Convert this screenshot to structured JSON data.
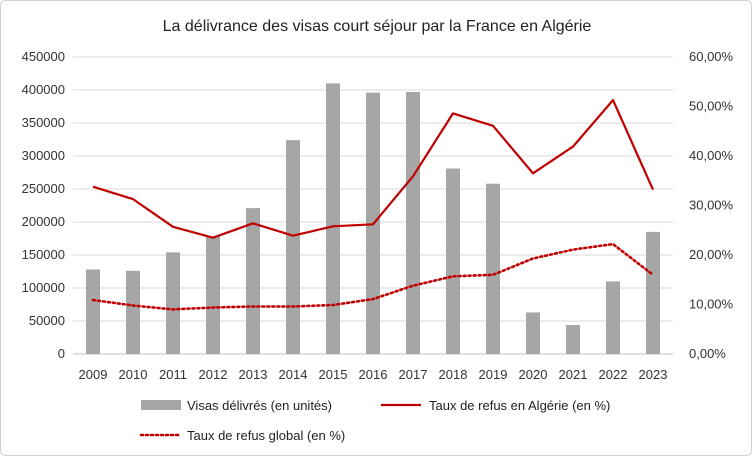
{
  "chart_data": {
    "type": "bar",
    "title": "La délivrance des visas court séjour par la France en Algérie",
    "categories": [
      "2009",
      "2010",
      "2011",
      "2012",
      "2013",
      "2014",
      "2015",
      "2016",
      "2017",
      "2018",
      "2019",
      "2020",
      "2021",
      "2022",
      "2023"
    ],
    "bars": {
      "name": "Visas délivrés (en unités)",
      "color": "#a6a6a6",
      "values": [
        128000,
        126000,
        154000,
        178000,
        221000,
        324000,
        410000,
        396000,
        397000,
        281000,
        258000,
        63000,
        44000,
        110000,
        185000
      ]
    },
    "lines": [
      {
        "name": "Taux de refus en Algérie (en %)",
        "color": "#c00000",
        "style": "solid",
        "values": [
          33.8,
          31.3,
          25.7,
          23.5,
          26.4,
          23.9,
          25.8,
          26.2,
          35.9,
          48.6,
          46.1,
          36.5,
          41.9,
          51.3,
          33.2
        ]
      },
      {
        "name": "Taux de refus global (en %)",
        "color": "#c00000",
        "style": "dotted",
        "values": [
          10.9,
          9.8,
          9.0,
          9.4,
          9.6,
          9.6,
          9.9,
          11.1,
          13.8,
          15.7,
          16.0,
          19.3,
          21.1,
          22.2,
          16.0
        ]
      }
    ],
    "y_left": {
      "min": 0,
      "max": 450000,
      "ticks": [
        "0",
        "50000",
        "100000",
        "150000",
        "200000",
        "250000",
        "300000",
        "350000",
        "400000",
        "450000"
      ]
    },
    "y_right": {
      "min": 0,
      "max": 60,
      "ticks": [
        "0,00%",
        "10,00%",
        "20,00%",
        "30,00%",
        "40,00%",
        "50,00%",
        "60,00%"
      ]
    },
    "grid": true,
    "legend_position": "bottom"
  }
}
